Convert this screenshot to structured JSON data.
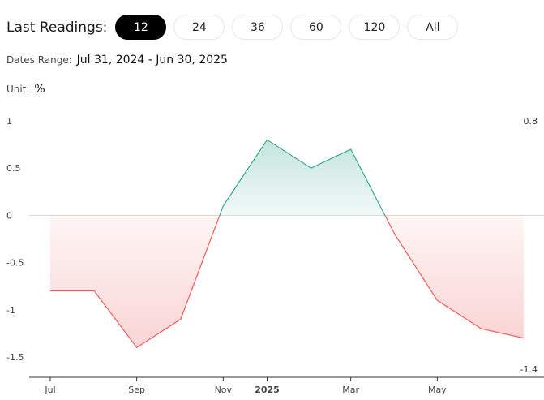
{
  "toolbar": {
    "label": "Last Readings:",
    "buttons": [
      "12",
      "24",
      "36",
      "60",
      "120",
      "All"
    ],
    "active": "12"
  },
  "dates_range": {
    "label": "Dates Range:",
    "value": "Jul 31, 2024 - Jun 30, 2025"
  },
  "unit": {
    "label": "Unit:",
    "value": "%"
  },
  "chart_data": {
    "type": "area",
    "x": [
      "2024-07-31",
      "2024-08-31",
      "2024-09-30",
      "2024-10-31",
      "2024-11-30",
      "2024-12-31",
      "2025-01-31",
      "2025-02-28",
      "2025-03-31",
      "2025-04-30",
      "2025-05-31",
      "2025-06-30"
    ],
    "values": [
      -0.8,
      -0.8,
      -1.4,
      -1.1,
      0.1,
      0.8,
      0.5,
      0.7,
      -0.2,
      -0.9,
      -1.2,
      -1.3
    ],
    "ylim": [
      -1.5,
      1
    ],
    "y_ticks": [
      "1",
      "0.5",
      "0",
      "-0.5",
      "-1",
      "-1.5"
    ],
    "x_ticks": [
      {
        "label": "Jul",
        "date": "2024-07-31",
        "bold": false
      },
      {
        "label": "Sep",
        "date": "2024-09-30",
        "bold": false
      },
      {
        "label": "Nov",
        "date": "2024-11-30",
        "bold": false
      },
      {
        "label": "2025",
        "date": "2024-12-31",
        "bold": true
      },
      {
        "label": "Mar",
        "date": "2025-02-28",
        "bold": false
      },
      {
        "label": "May",
        "date": "2025-04-30",
        "bold": false
      }
    ],
    "right_labels": {
      "max": "0.8",
      "min": "-1.4"
    },
    "colors": {
      "positive_line": "#3aa896",
      "negative_line": "#ee5b5b",
      "positive_fill": "#2e9f87",
      "negative_fill": "#f5a0a0",
      "zero_line": "#d6d6d6"
    },
    "grid": false
  }
}
